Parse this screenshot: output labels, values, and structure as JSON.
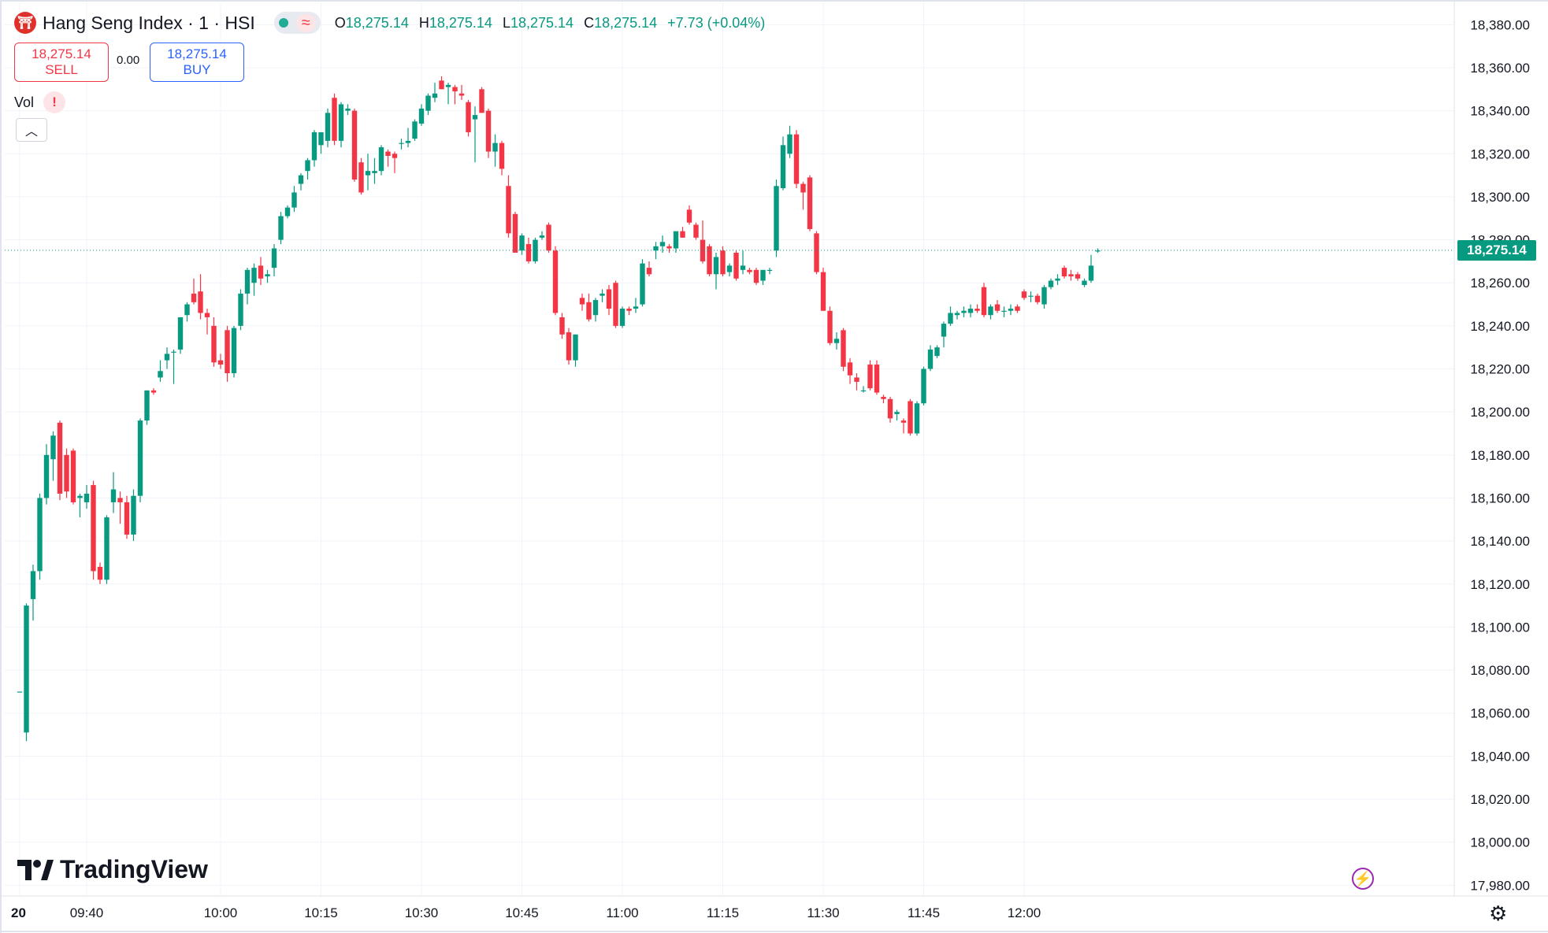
{
  "header": {
    "title": "Hang Seng Index · 1 · HSI",
    "ohlc": {
      "o_label": "O",
      "o": "18,275.14",
      "h_label": "H",
      "h": "18,275.14",
      "l_label": "L",
      "l": "18,275.14",
      "c_label": "C",
      "c": "18,275.14",
      "change": "+7.73 (+0.04%)"
    },
    "wave_icon": "≈"
  },
  "trade": {
    "sell_price": "18,275.14",
    "sell_label": "SELL",
    "spread": "0.00",
    "buy_price": "18,275.14",
    "buy_label": "BUY"
  },
  "volume": {
    "label": "Vol",
    "warning": "!"
  },
  "collapse_icon": "chevron-up-icon",
  "brand": {
    "name": "TradingView"
  },
  "last_price_tag": "18,275.14",
  "colors": {
    "up": "#089981",
    "down": "#f23645",
    "grid": "#f0f3fa",
    "price_line": "#089981"
  },
  "chart_data": {
    "type": "candlestick",
    "title": "Hang Seng Index · 1 · HSI",
    "interval_minutes": 1,
    "y_ticks": [
      "18,380.00",
      "18,360.00",
      "18,340.00",
      "18,320.00",
      "18,300.00",
      "18,280.00",
      "18,260.00",
      "18,240.00",
      "18,220.00",
      "18,200.00",
      "18,180.00",
      "18,160.00",
      "18,140.00",
      "18,120.00",
      "18,100.00",
      "18,080.00",
      "18,060.00",
      "18,040.00",
      "18,020.00",
      "18,000.00",
      "17,980.00"
    ],
    "ylim": [
      17975,
      18390
    ],
    "x_ticks": [
      {
        "time": "09:30",
        "label": "20"
      },
      {
        "time": "09:40",
        "label": "09:40"
      },
      {
        "time": "10:00",
        "label": "10:00"
      },
      {
        "time": "10:15",
        "label": "10:15"
      },
      {
        "time": "10:30",
        "label": "10:30"
      },
      {
        "time": "10:45",
        "label": "10:45"
      },
      {
        "time": "11:00",
        "label": "11:00"
      },
      {
        "time": "11:15",
        "label": "11:15"
      },
      {
        "time": "11:30",
        "label": "11:30"
      },
      {
        "time": "11:45",
        "label": "11:45"
      },
      {
        "time": "12:00",
        "label": "12:00"
      }
    ],
    "last_price": 18275.14,
    "grid": true,
    "start_time": "09:30",
    "candles": [
      {
        "o": 18070,
        "h": 18070,
        "l": 18070,
        "c": 18070
      },
      {
        "o": 18051,
        "h": 18111,
        "l": 18047,
        "c": 18110
      },
      {
        "o": 18113,
        "h": 18129,
        "l": 18103,
        "c": 18126
      },
      {
        "o": 18126,
        "h": 18162,
        "l": 18122,
        "c": 18160
      },
      {
        "o": 18160,
        "h": 18185,
        "l": 18157,
        "c": 18180
      },
      {
        "o": 18178,
        "h": 18191,
        "l": 18168,
        "c": 18189
      },
      {
        "o": 18195,
        "h": 18196,
        "l": 18159,
        "c": 18162
      },
      {
        "o": 18180,
        "h": 18183,
        "l": 18160,
        "c": 18163
      },
      {
        "o": 18182,
        "h": 18183,
        "l": 18157,
        "c": 18158
      },
      {
        "o": 18160,
        "h": 18162,
        "l": 18151,
        "c": 18161
      },
      {
        "o": 18158,
        "h": 18166,
        "l": 18155,
        "c": 18162
      },
      {
        "o": 18166,
        "h": 18168,
        "l": 18122,
        "c": 18126
      },
      {
        "o": 18128,
        "h": 18130,
        "l": 18120,
        "c": 18122
      },
      {
        "o": 18122,
        "h": 18152,
        "l": 18120,
        "c": 18151
      },
      {
        "o": 18158,
        "h": 18172,
        "l": 18153,
        "c": 18164
      },
      {
        "o": 18160,
        "h": 18163,
        "l": 18148,
        "c": 18158
      },
      {
        "o": 18158,
        "h": 18161,
        "l": 18141,
        "c": 18143
      },
      {
        "o": 18143,
        "h": 18164,
        "l": 18140,
        "c": 18161
      },
      {
        "o": 18161,
        "h": 18197,
        "l": 18158,
        "c": 18196
      },
      {
        "o": 18196,
        "h": 18210,
        "l": 18194,
        "c": 18210
      },
      {
        "o": 18210,
        "h": 18211,
        "l": 18208,
        "c": 18209
      },
      {
        "o": 18216,
        "h": 18224,
        "l": 18214,
        "c": 18219
      },
      {
        "o": 18224,
        "h": 18230,
        "l": 18220,
        "c": 18227
      },
      {
        "o": 18228,
        "h": 18229,
        "l": 18213,
        "c": 18228
      },
      {
        "o": 18229,
        "h": 18244,
        "l": 18227,
        "c": 18244
      },
      {
        "o": 18245,
        "h": 18251,
        "l": 18242,
        "c": 18250
      },
      {
        "o": 18255,
        "h": 18262,
        "l": 18250,
        "c": 18251
      },
      {
        "o": 18256,
        "h": 18264,
        "l": 18243,
        "c": 18246
      },
      {
        "o": 18246,
        "h": 18248,
        "l": 18236,
        "c": 18244
      },
      {
        "o": 18240,
        "h": 18244,
        "l": 18221,
        "c": 18223
      },
      {
        "o": 18224,
        "h": 18227,
        "l": 18220,
        "c": 18222
      },
      {
        "o": 18238,
        "h": 18240,
        "l": 18214,
        "c": 18218
      },
      {
        "o": 18218,
        "h": 18240,
        "l": 18216,
        "c": 18239
      },
      {
        "o": 18240,
        "h": 18257,
        "l": 18238,
        "c": 18255
      },
      {
        "o": 18255,
        "h": 18267,
        "l": 18250,
        "c": 18266
      },
      {
        "o": 18260,
        "h": 18269,
        "l": 18254,
        "c": 18267
      },
      {
        "o": 18268,
        "h": 18272,
        "l": 18259,
        "c": 18262
      },
      {
        "o": 18263,
        "h": 18266,
        "l": 18260,
        "c": 18264
      },
      {
        "o": 18267,
        "h": 18278,
        "l": 18263,
        "c": 18276
      },
      {
        "o": 18280,
        "h": 18293,
        "l": 18278,
        "c": 18291
      },
      {
        "o": 18291,
        "h": 18296,
        "l": 18290,
        "c": 18295
      },
      {
        "o": 18295,
        "h": 18305,
        "l": 18293,
        "c": 18302
      },
      {
        "o": 18306,
        "h": 18311,
        "l": 18303,
        "c": 18310
      },
      {
        "o": 18312,
        "h": 18318,
        "l": 18308,
        "c": 18317
      },
      {
        "o": 18317,
        "h": 18331,
        "l": 18314,
        "c": 18330
      },
      {
        "o": 18324,
        "h": 18330,
        "l": 18320,
        "c": 18330
      },
      {
        "o": 18326,
        "h": 18341,
        "l": 18323,
        "c": 18339
      },
      {
        "o": 18346,
        "h": 18348,
        "l": 18324,
        "c": 18326
      },
      {
        "o": 18326,
        "h": 18344,
        "l": 18323,
        "c": 18343
      },
      {
        "o": 18340,
        "h": 18343,
        "l": 18338,
        "c": 18341
      },
      {
        "o": 18340,
        "h": 18341,
        "l": 18307,
        "c": 18308
      },
      {
        "o": 18316,
        "h": 18318,
        "l": 18301,
        "c": 18302
      },
      {
        "o": 18310,
        "h": 18320,
        "l": 18303,
        "c": 18312
      },
      {
        "o": 18311,
        "h": 18318,
        "l": 18306,
        "c": 18312
      },
      {
        "o": 18312,
        "h": 18324,
        "l": 18310,
        "c": 18323
      },
      {
        "o": 18321,
        "h": 18322,
        "l": 18314,
        "c": 18319
      },
      {
        "o": 18320,
        "h": 18321,
        "l": 18311,
        "c": 18318
      },
      {
        "o": 18325,
        "h": 18327,
        "l": 18322,
        "c": 18325
      },
      {
        "o": 18325,
        "h": 18332,
        "l": 18323,
        "c": 18326
      },
      {
        "o": 18327,
        "h": 18336,
        "l": 18326,
        "c": 18335
      },
      {
        "o": 18334,
        "h": 18343,
        "l": 18333,
        "c": 18341
      },
      {
        "o": 18340,
        "h": 18348,
        "l": 18338,
        "c": 18347
      },
      {
        "o": 18346,
        "h": 18353,
        "l": 18344,
        "c": 18348
      },
      {
        "o": 18354,
        "h": 18356,
        "l": 18350,
        "c": 18350
      },
      {
        "o": 18351,
        "h": 18353,
        "l": 18343,
        "c": 18352
      },
      {
        "o": 18351,
        "h": 18352,
        "l": 18343,
        "c": 18349
      },
      {
        "o": 18348,
        "h": 18352,
        "l": 18345,
        "c": 18347
      },
      {
        "o": 18344,
        "h": 18345,
        "l": 18328,
        "c": 18330
      },
      {
        "o": 18336,
        "h": 18342,
        "l": 18316,
        "c": 18338
      },
      {
        "o": 18350,
        "h": 18351,
        "l": 18339,
        "c": 18339
      },
      {
        "o": 18340,
        "h": 18341,
        "l": 18318,
        "c": 18321
      },
      {
        "o": 18321,
        "h": 18329,
        "l": 18314,
        "c": 18325
      },
      {
        "o": 18325,
        "h": 18326,
        "l": 18310,
        "c": 18313
      },
      {
        "o": 18305,
        "h": 18310,
        "l": 18281,
        "c": 18283
      },
      {
        "o": 18292,
        "h": 18293,
        "l": 18274,
        "c": 18274
      },
      {
        "o": 18275,
        "h": 18283,
        "l": 18273,
        "c": 18282
      },
      {
        "o": 18278,
        "h": 18281,
        "l": 18269,
        "c": 18270
      },
      {
        "o": 18270,
        "h": 18281,
        "l": 18269,
        "c": 18280
      },
      {
        "o": 18281,
        "h": 18284,
        "l": 18280,
        "c": 18282
      },
      {
        "o": 18287,
        "h": 18288,
        "l": 18274,
        "c": 18275
      },
      {
        "o": 18275,
        "h": 18277,
        "l": 18245,
        "c": 18246
      },
      {
        "o": 18244,
        "h": 18246,
        "l": 18234,
        "c": 18236
      },
      {
        "o": 18237,
        "h": 18239,
        "l": 18222,
        "c": 18224
      },
      {
        "o": 18224,
        "h": 18236,
        "l": 18221,
        "c": 18236
      },
      {
        "o": 18253,
        "h": 18255,
        "l": 18247,
        "c": 18250
      },
      {
        "o": 18251,
        "h": 18255,
        "l": 18242,
        "c": 18243
      },
      {
        "o": 18245,
        "h": 18253,
        "l": 18242,
        "c": 18252
      },
      {
        "o": 18254,
        "h": 18257,
        "l": 18251,
        "c": 18255
      },
      {
        "o": 18257,
        "h": 18259,
        "l": 18245,
        "c": 18248
      },
      {
        "o": 18260,
        "h": 18261,
        "l": 18239,
        "c": 18240
      },
      {
        "o": 18240,
        "h": 18249,
        "l": 18239,
        "c": 18248
      },
      {
        "o": 18248,
        "h": 18249,
        "l": 18245,
        "c": 18247
      },
      {
        "o": 18248,
        "h": 18253,
        "l": 18246,
        "c": 18249
      },
      {
        "o": 18250,
        "h": 18271,
        "l": 18249,
        "c": 18269
      },
      {
        "o": 18267,
        "h": 18270,
        "l": 18263,
        "c": 18264
      },
      {
        "o": 18275,
        "h": 18279,
        "l": 18271,
        "c": 18277
      },
      {
        "o": 18277,
        "h": 18282,
        "l": 18274,
        "c": 18279
      },
      {
        "o": 18277,
        "h": 18278,
        "l": 18274,
        "c": 18276
      },
      {
        "o": 18276,
        "h": 18283,
        "l": 18274,
        "c": 18284
      },
      {
        "o": 18284,
        "h": 18286,
        "l": 18281,
        "c": 18281
      },
      {
        "o": 18294,
        "h": 18296,
        "l": 18287,
        "c": 18288
      },
      {
        "o": 18287,
        "h": 18288,
        "l": 18280,
        "c": 18281
      },
      {
        "o": 18280,
        "h": 18289,
        "l": 18269,
        "c": 18270
      },
      {
        "o": 18277,
        "h": 18278,
        "l": 18263,
        "c": 18264
      },
      {
        "o": 18264,
        "h": 18274,
        "l": 18257,
        "c": 18272
      },
      {
        "o": 18275,
        "h": 18277,
        "l": 18263,
        "c": 18264
      },
      {
        "o": 18265,
        "h": 18269,
        "l": 18263,
        "c": 18268
      },
      {
        "o": 18274,
        "h": 18275,
        "l": 18261,
        "c": 18262
      },
      {
        "o": 18266,
        "h": 18275,
        "l": 18264,
        "c": 18268
      },
      {
        "o": 18266,
        "h": 18267,
        "l": 18264,
        "c": 18265
      },
      {
        "o": 18266,
        "h": 18267,
        "l": 18259,
        "c": 18260
      },
      {
        "o": 18261,
        "h": 18266,
        "l": 18259,
        "c": 18266
      },
      {
        "o": 18266,
        "h": 18267,
        "l": 18264,
        "c": 18266
      },
      {
        "o": 18275,
        "h": 18308,
        "l": 18272,
        "c": 18305
      },
      {
        "o": 18304,
        "h": 18328,
        "l": 18303,
        "c": 18324
      },
      {
        "o": 18320,
        "h": 18333,
        "l": 18318,
        "c": 18329
      },
      {
        "o": 18329,
        "h": 18331,
        "l": 18304,
        "c": 18306
      },
      {
        "o": 18306,
        "h": 18307,
        "l": 18294,
        "c": 18302
      },
      {
        "o": 18309,
        "h": 18310,
        "l": 18284,
        "c": 18285
      },
      {
        "o": 18283,
        "h": 18284,
        "l": 18264,
        "c": 18265
      },
      {
        "o": 18265,
        "h": 18267,
        "l": 18247,
        "c": 18247
      },
      {
        "o": 18247,
        "h": 18249,
        "l": 18231,
        "c": 18232
      },
      {
        "o": 18232,
        "h": 18237,
        "l": 18229,
        "c": 18234
      },
      {
        "o": 18238,
        "h": 18239,
        "l": 18219,
        "c": 18221
      },
      {
        "o": 18223,
        "h": 18225,
        "l": 18213,
        "c": 18217
      },
      {
        "o": 18216,
        "h": 18218,
        "l": 18210,
        "c": 18214
      },
      {
        "o": 18210,
        "h": 18212,
        "l": 18209,
        "c": 18210
      },
      {
        "o": 18222,
        "h": 18224,
        "l": 18210,
        "c": 18211
      },
      {
        "o": 18222,
        "h": 18224,
        "l": 18208,
        "c": 18209
      },
      {
        "o": 18207,
        "h": 18208,
        "l": 18204,
        "c": 18206
      },
      {
        "o": 18206,
        "h": 18207,
        "l": 18195,
        "c": 18197
      },
      {
        "o": 18199,
        "h": 18201,
        "l": 18196,
        "c": 18200
      },
      {
        "o": 18196,
        "h": 18197,
        "l": 18190,
        "c": 18195
      },
      {
        "o": 18205,
        "h": 18206,
        "l": 18189,
        "c": 18190
      },
      {
        "o": 18190,
        "h": 18205,
        "l": 18189,
        "c": 18204
      },
      {
        "o": 18204,
        "h": 18221,
        "l": 18203,
        "c": 18220
      },
      {
        "o": 18220,
        "h": 18231,
        "l": 18219,
        "c": 18229
      },
      {
        "o": 18226,
        "h": 18231,
        "l": 18225,
        "c": 18230
      },
      {
        "o": 18235,
        "h": 18242,
        "l": 18230,
        "c": 18241
      },
      {
        "o": 18241,
        "h": 18249,
        "l": 18240,
        "c": 18246
      },
      {
        "o": 18245,
        "h": 18247,
        "l": 18243,
        "c": 18246
      },
      {
        "o": 18246,
        "h": 18249,
        "l": 18244,
        "c": 18247
      },
      {
        "o": 18246,
        "h": 18250,
        "l": 18244,
        "c": 18248
      },
      {
        "o": 18248,
        "h": 18250,
        "l": 18246,
        "c": 18247
      },
      {
        "o": 18258,
        "h": 18260,
        "l": 18244,
        "c": 18245
      },
      {
        "o": 18245,
        "h": 18250,
        "l": 18243,
        "c": 18249
      },
      {
        "o": 18250,
        "h": 18252,
        "l": 18246,
        "c": 18247
      },
      {
        "o": 18247,
        "h": 18249,
        "l": 18244,
        "c": 18247
      },
      {
        "o": 18247,
        "h": 18250,
        "l": 18245,
        "c": 18248
      },
      {
        "o": 18249,
        "h": 18250,
        "l": 18246,
        "c": 18247
      },
      {
        "o": 18256,
        "h": 18257,
        "l": 18252,
        "c": 18253
      },
      {
        "o": 18254,
        "h": 18256,
        "l": 18251,
        "c": 18254
      },
      {
        "o": 18254,
        "h": 18255,
        "l": 18250,
        "c": 18251
      },
      {
        "o": 18250,
        "h": 18259,
        "l": 18248,
        "c": 18258
      },
      {
        "o": 18258,
        "h": 18262,
        "l": 18257,
        "c": 18261
      },
      {
        "o": 18261,
        "h": 18264,
        "l": 18259,
        "c": 18262
      },
      {
        "o": 18267,
        "h": 18268,
        "l": 18262,
        "c": 18263
      },
      {
        "o": 18264,
        "h": 18266,
        "l": 18261,
        "c": 18263
      },
      {
        "o": 18264,
        "h": 18265,
        "l": 18261,
        "c": 18262
      },
      {
        "o": 18259,
        "h": 18262,
        "l": 18258,
        "c": 18261
      },
      {
        "o": 18261,
        "h": 18273,
        "l": 18260,
        "c": 18268
      },
      {
        "o": 18275,
        "h": 18276,
        "l": 18274,
        "c": 18275
      }
    ]
  }
}
